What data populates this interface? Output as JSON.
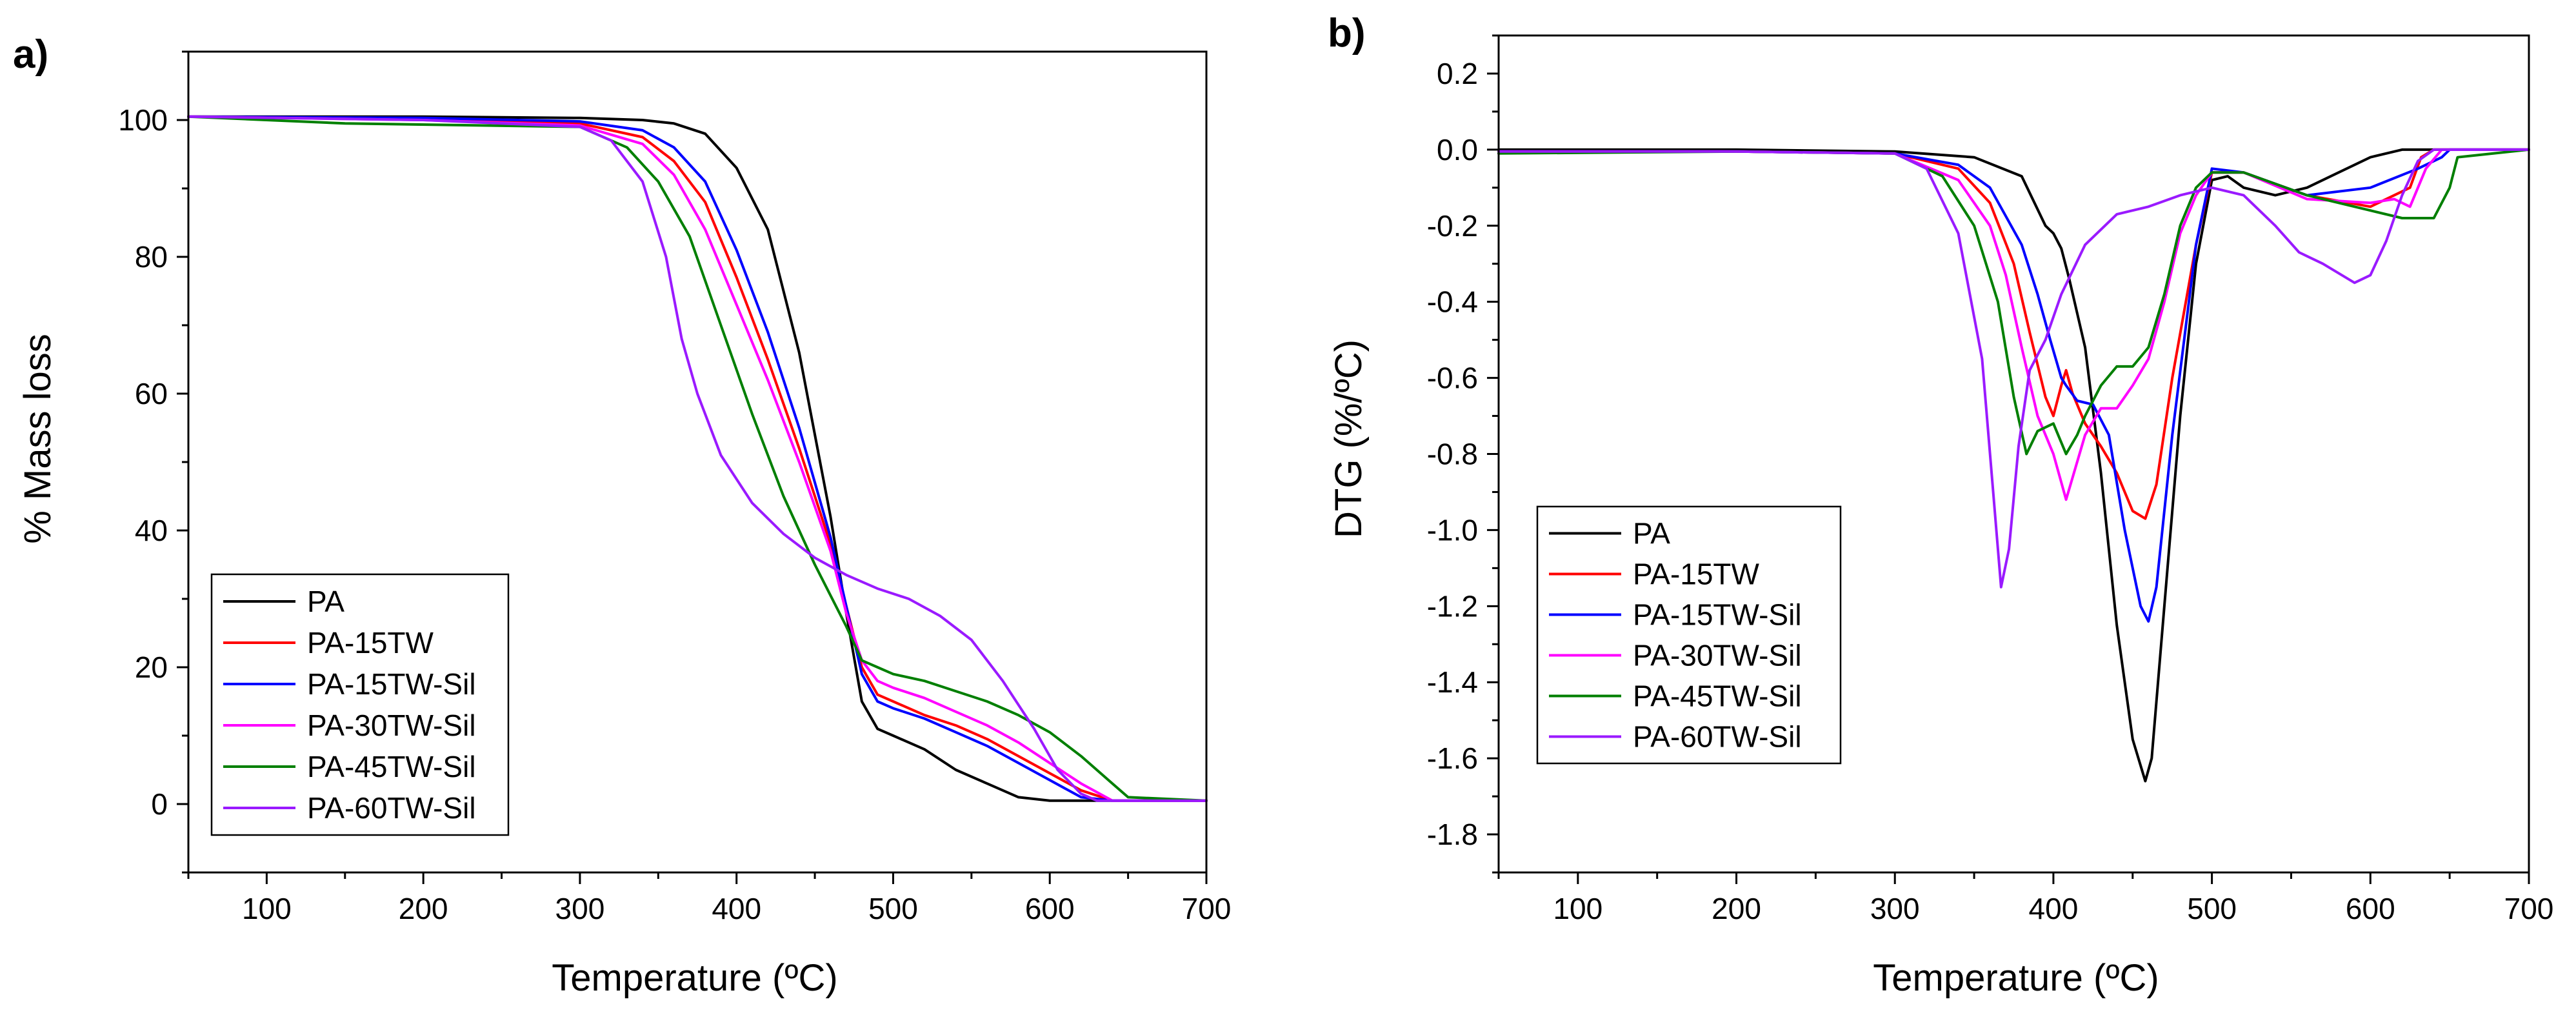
{
  "chart_data": [
    {
      "type": "line",
      "panel_label": "a)",
      "xlabel": "Temperature (ºC)",
      "ylabel": "% Mass loss",
      "xlim": [
        50,
        700
      ],
      "ylim": [
        -10,
        110
      ],
      "xticks": [
        100,
        200,
        300,
        400,
        500,
        600,
        700
      ],
      "xtick_labels": [
        "100",
        "200",
        "300",
        "400",
        "500",
        "600",
        "700"
      ],
      "yticks": [
        0,
        20,
        40,
        60,
        80,
        100
      ],
      "ytick_labels": [
        "0",
        "20",
        "40",
        "60",
        "80",
        "100"
      ],
      "grid": false,
      "legend_position": "bottom-left",
      "series": [
        {
          "name": "PA",
          "color": "#000000",
          "x": [
            50,
            200,
            300,
            340,
            360,
            380,
            400,
            420,
            440,
            460,
            470,
            480,
            490,
            500,
            520,
            540,
            560,
            580,
            600,
            650,
            700
          ],
          "y": [
            100.5,
            100.5,
            100.3,
            100,
            99.5,
            98,
            93,
            84,
            66,
            42,
            28,
            15,
            11,
            10,
            8,
            5,
            3,
            1,
            0.5,
            0.5,
            0.5
          ]
        },
        {
          "name": "PA-15TW",
          "color": "#ff0000",
          "x": [
            50,
            200,
            300,
            340,
            360,
            380,
            400,
            420,
            440,
            460,
            470,
            480,
            490,
            500,
            520,
            540,
            560,
            580,
            600,
            620,
            640,
            700
          ],
          "y": [
            100.5,
            100.2,
            99.5,
            97.5,
            94,
            88,
            77,
            65,
            52,
            38,
            29,
            20,
            16,
            15,
            13,
            11.5,
            9.5,
            7,
            4.5,
            2,
            0.5,
            0.5
          ]
        },
        {
          "name": "PA-15TW-Sil",
          "color": "#0000ff",
          "x": [
            50,
            200,
            300,
            340,
            360,
            380,
            400,
            420,
            440,
            460,
            470,
            480,
            490,
            500,
            520,
            540,
            560,
            580,
            600,
            620,
            640,
            700
          ],
          "y": [
            100.5,
            100.3,
            99.8,
            98.5,
            96,
            91,
            81,
            69,
            55,
            39,
            29,
            19,
            15,
            14,
            12.5,
            10.5,
            8.5,
            6,
            3.5,
            1,
            0.5,
            0.5
          ]
        },
        {
          "name": "PA-30TW-Sil",
          "color": "#ff00ff",
          "x": [
            50,
            200,
            300,
            340,
            360,
            380,
            400,
            420,
            440,
            460,
            470,
            480,
            490,
            500,
            520,
            540,
            560,
            580,
            600,
            620,
            640,
            700
          ],
          "y": [
            100.5,
            100,
            99.2,
            96.5,
            92,
            84,
            73,
            62,
            50,
            37,
            28,
            21,
            18,
            17,
            15.5,
            13.5,
            11.5,
            9,
            6,
            3,
            0.5,
            0.5
          ]
        },
        {
          "name": "PA-45TW-Sil",
          "color": "#007f00",
          "x": [
            50,
            150,
            300,
            330,
            350,
            370,
            390,
            410,
            430,
            450,
            470,
            480,
            490,
            500,
            520,
            540,
            560,
            580,
            600,
            620,
            640,
            650,
            700
          ],
          "y": [
            100.5,
            99.5,
            99,
            96,
            91,
            83,
            70,
            57,
            45,
            35,
            26,
            21,
            20,
            19,
            18,
            16.5,
            15,
            13,
            10.5,
            7,
            3,
            1,
            0.5
          ]
        },
        {
          "name": "PA-60TW-Sil",
          "color": "#9a1aff",
          "x": [
            50,
            200,
            300,
            320,
            340,
            355,
            365,
            375,
            390,
            410,
            430,
            450,
            470,
            490,
            510,
            530,
            550,
            570,
            590,
            605,
            620,
            630,
            700
          ],
          "y": [
            100.5,
            100,
            99,
            97,
            91,
            80,
            68,
            60,
            51,
            44,
            39.5,
            36,
            33.5,
            31.5,
            30,
            27.5,
            24,
            18,
            11,
            5,
            1.5,
            0.5,
            0.5
          ]
        }
      ]
    },
    {
      "type": "line",
      "panel_label": "b)",
      "xlabel": "Temperature (ºC)",
      "ylabel": "DTG (%/ºC)",
      "xlim": [
        50,
        700
      ],
      "ylim": [
        -1.9,
        0.3
      ],
      "xticks": [
        100,
        200,
        300,
        400,
        500,
        600,
        700
      ],
      "xtick_labels": [
        "100",
        "200",
        "300",
        "400",
        "500",
        "600",
        "700"
      ],
      "yticks": [
        0.2,
        0.0,
        -0.2,
        -0.4,
        -0.6,
        -0.8,
        -1.0,
        -1.2,
        -1.4,
        -1.6,
        -1.8
      ],
      "ytick_labels": [
        "0.2",
        "0.0",
        "-0.2",
        "-0.4",
        "-0.6",
        "-0.8",
        "-1.0",
        "-1.2",
        "-1.4",
        "-1.6",
        "-1.8"
      ],
      "grid": false,
      "legend_position": "bottom-left",
      "series": [
        {
          "name": "PA",
          "color": "#000000",
          "x": [
            50,
            200,
            300,
            350,
            380,
            395,
            400,
            405,
            410,
            420,
            430,
            440,
            450,
            458,
            462,
            470,
            480,
            490,
            500,
            510,
            520,
            540,
            560,
            580,
            600,
            620,
            700
          ],
          "y": [
            0,
            0,
            -0.005,
            -0.02,
            -0.07,
            -0.2,
            -0.22,
            -0.26,
            -0.34,
            -0.52,
            -0.85,
            -1.25,
            -1.55,
            -1.66,
            -1.6,
            -1.2,
            -0.7,
            -0.3,
            -0.08,
            -0.07,
            -0.1,
            -0.12,
            -0.1,
            -0.06,
            -0.02,
            0,
            0
          ]
        },
        {
          "name": "PA-15TW",
          "color": "#ff0000",
          "x": [
            50,
            200,
            300,
            340,
            360,
            375,
            385,
            395,
            400,
            405,
            408,
            412,
            420,
            430,
            440,
            450,
            458,
            465,
            475,
            490,
            500,
            520,
            560,
            600,
            625,
            632,
            640,
            700
          ],
          "y": [
            -0.005,
            -0.005,
            -0.01,
            -0.05,
            -0.14,
            -0.3,
            -0.48,
            -0.65,
            -0.7,
            -0.62,
            -0.58,
            -0.64,
            -0.72,
            -0.78,
            -0.85,
            -0.95,
            -0.97,
            -0.88,
            -0.6,
            -0.25,
            -0.06,
            -0.06,
            -0.12,
            -0.15,
            -0.1,
            -0.02,
            0,
            0
          ]
        },
        {
          "name": "PA-15TW-Sil",
          "color": "#0000ff",
          "x": [
            50,
            200,
            300,
            340,
            360,
            380,
            390,
            398,
            405,
            408,
            415,
            425,
            435,
            445,
            455,
            460,
            465,
            475,
            490,
            500,
            520,
            560,
            600,
            630,
            645,
            650,
            700
          ],
          "y": [
            -0.005,
            -0.005,
            -0.01,
            -0.04,
            -0.1,
            -0.25,
            -0.38,
            -0.5,
            -0.6,
            -0.62,
            -0.66,
            -0.67,
            -0.75,
            -1.0,
            -1.2,
            -1.24,
            -1.15,
            -0.75,
            -0.25,
            -0.05,
            -0.06,
            -0.12,
            -0.1,
            -0.05,
            -0.02,
            0,
            0
          ]
        },
        {
          "name": "PA-30TW-Sil",
          "color": "#ff00ff",
          "x": [
            50,
            200,
            300,
            340,
            360,
            370,
            380,
            390,
            400,
            408,
            420,
            430,
            440,
            450,
            460,
            470,
            480,
            490,
            500,
            520,
            560,
            600,
            615,
            625,
            635,
            645,
            700
          ],
          "y": [
            -0.005,
            -0.005,
            -0.01,
            -0.08,
            -0.2,
            -0.33,
            -0.52,
            -0.7,
            -0.8,
            -0.92,
            -0.75,
            -0.68,
            -0.68,
            -0.62,
            -0.55,
            -0.4,
            -0.22,
            -0.12,
            -0.06,
            -0.06,
            -0.13,
            -0.14,
            -0.13,
            -0.15,
            -0.05,
            0,
            0
          ]
        },
        {
          "name": "PA-45TW-Sil",
          "color": "#007f00",
          "x": [
            50,
            200,
            300,
            330,
            350,
            365,
            375,
            383,
            390,
            400,
            408,
            415,
            420,
            430,
            440,
            450,
            460,
            470,
            480,
            490,
            500,
            520,
            560,
            600,
            620,
            640,
            650,
            655,
            700
          ],
          "y": [
            -0.01,
            -0.005,
            -0.01,
            -0.07,
            -0.2,
            -0.4,
            -0.65,
            -0.8,
            -0.74,
            -0.72,
            -0.8,
            -0.75,
            -0.7,
            -0.62,
            -0.57,
            -0.57,
            -0.52,
            -0.38,
            -0.2,
            -0.1,
            -0.06,
            -0.06,
            -0.12,
            -0.16,
            -0.18,
            -0.18,
            -0.1,
            -0.02,
            0
          ]
        },
        {
          "name": "PA-60TW-Sil",
          "color": "#9a1aff",
          "x": [
            50,
            200,
            300,
            320,
            340,
            355,
            362,
            367,
            372,
            378,
            385,
            395,
            405,
            420,
            440,
            460,
            480,
            500,
            520,
            540,
            555,
            560,
            570,
            590,
            600,
            610,
            620,
            630,
            640,
            700
          ],
          "y": [
            -0.005,
            -0.005,
            -0.01,
            -0.05,
            -0.22,
            -0.55,
            -0.9,
            -1.15,
            -1.05,
            -0.78,
            -0.58,
            -0.5,
            -0.38,
            -0.25,
            -0.17,
            -0.15,
            -0.12,
            -0.1,
            -0.12,
            -0.2,
            -0.27,
            -0.28,
            -0.3,
            -0.35,
            -0.33,
            -0.24,
            -0.12,
            -0.03,
            0,
            0
          ]
        }
      ]
    }
  ]
}
